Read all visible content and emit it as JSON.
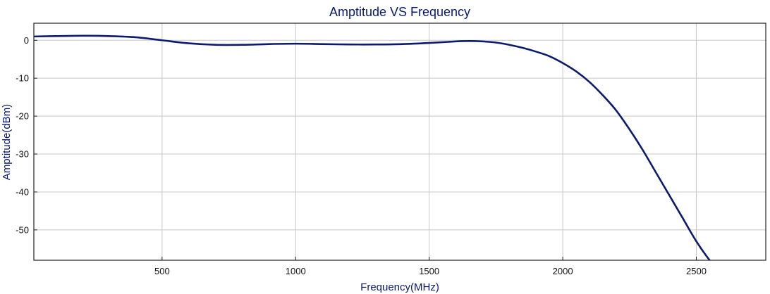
{
  "chart_data": {
    "type": "line",
    "title": "Amptitude VS Frequency",
    "xlabel": "Frequency(MHz)",
    "ylabel": "Amptitude(dBm)",
    "xlim": [
      20,
      2760
    ],
    "ylim": [
      -58,
      4.5
    ],
    "xticks": [
      500,
      1000,
      1500,
      2000,
      2500
    ],
    "yticks": [
      0,
      -10,
      -20,
      -30,
      -40,
      -50
    ],
    "grid": true,
    "legend": "none",
    "line_color": "#0d1b6f",
    "series": [
      {
        "x": [
          20,
          100,
          200,
          300,
          400,
          500,
          600,
          700,
          800,
          900,
          1000,
          1100,
          1200,
          1300,
          1400,
          1500,
          1600,
          1650,
          1700,
          1750,
          1800,
          1850,
          1900,
          1950,
          2000,
          2050,
          2100,
          2150,
          2200,
          2250,
          2300,
          2350,
          2400,
          2450,
          2500,
          2550,
          2600
        ],
        "y": [
          1.0,
          1.1,
          1.2,
          1.1,
          0.8,
          0.0,
          -0.8,
          -1.2,
          -1.2,
          -1.0,
          -0.9,
          -1.0,
          -1.1,
          -1.1,
          -1.0,
          -0.7,
          -0.3,
          -0.2,
          -0.3,
          -0.6,
          -1.2,
          -2.0,
          -3.0,
          -4.2,
          -6.0,
          -8.2,
          -11.0,
          -14.5,
          -18.5,
          -23.5,
          -29.0,
          -35.0,
          -41.0,
          -47.0,
          -53.0,
          -58.0,
          -62.0
        ]
      }
    ]
  }
}
